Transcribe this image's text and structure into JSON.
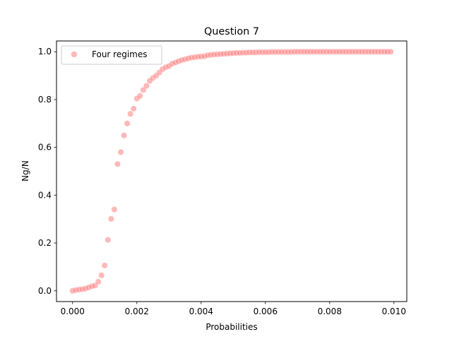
{
  "chart_data": {
    "type": "scatter",
    "title": "Question 7",
    "xlabel": "Probabilities",
    "ylabel": "Ng/N",
    "xlim": [
      -0.0005,
      0.0104
    ],
    "ylim": [
      -0.045,
      1.045
    ],
    "xticks": [
      0.0,
      0.002,
      0.004,
      0.006,
      0.008,
      0.01
    ],
    "xtick_labels": [
      "0.000",
      "0.002",
      "0.004",
      "0.006",
      "0.008",
      "0.010"
    ],
    "yticks": [
      0.0,
      0.2,
      0.4,
      0.6,
      0.8,
      1.0
    ],
    "ytick_labels": [
      "0.0",
      "0.2",
      "0.4",
      "0.6",
      "0.8",
      "1.0"
    ],
    "grid": false,
    "legend": {
      "position": "top-left",
      "entries": [
        "Four regimes"
      ]
    },
    "series": [
      {
        "name": "Four regimes",
        "color": "#ff7f7f",
        "x": [
          0.0,
          0.0001,
          0.0002,
          0.0003,
          0.0004,
          0.0005,
          0.0006,
          0.0007,
          0.0008,
          0.0009,
          0.001,
          0.0011,
          0.0012,
          0.0013,
          0.0014,
          0.0015,
          0.0016,
          0.0017,
          0.0018,
          0.0019,
          0.002,
          0.0021,
          0.0022,
          0.0023,
          0.0024,
          0.0025,
          0.0026,
          0.0027,
          0.0028,
          0.0029,
          0.003,
          0.0031,
          0.0032,
          0.0033,
          0.0034,
          0.0035,
          0.0036,
          0.0037,
          0.0038,
          0.0039,
          0.004,
          0.0041,
          0.0042,
          0.0043,
          0.0044,
          0.0045,
          0.0046,
          0.0047,
          0.0048,
          0.0049,
          0.005,
          0.0051,
          0.0052,
          0.0053,
          0.0054,
          0.0055,
          0.0056,
          0.0057,
          0.0058,
          0.0059,
          0.006,
          0.0061,
          0.0062,
          0.0063,
          0.0064,
          0.0065,
          0.0066,
          0.0067,
          0.0068,
          0.0069,
          0.007,
          0.0071,
          0.0072,
          0.0073,
          0.0074,
          0.0075,
          0.0076,
          0.0077,
          0.0078,
          0.0079,
          0.008,
          0.0081,
          0.0082,
          0.0083,
          0.0084,
          0.0085,
          0.0086,
          0.0087,
          0.0088,
          0.0089,
          0.009,
          0.0091,
          0.0092,
          0.0093,
          0.0094,
          0.0095,
          0.0096,
          0.0097,
          0.0098,
          0.0099
        ],
        "y": [
          0.0,
          0.003,
          0.005,
          0.007,
          0.009,
          0.014,
          0.019,
          0.022,
          0.038,
          0.065,
          0.106,
          0.213,
          0.301,
          0.34,
          0.53,
          0.58,
          0.65,
          0.7,
          0.74,
          0.762,
          0.804,
          0.815,
          0.84,
          0.857,
          0.878,
          0.89,
          0.9,
          0.913,
          0.927,
          0.935,
          0.94,
          0.95,
          0.955,
          0.96,
          0.965,
          0.968,
          0.972,
          0.975,
          0.977,
          0.979,
          0.98,
          0.981,
          0.985,
          0.987,
          0.988,
          0.989,
          0.99,
          0.991,
          0.992,
          0.993,
          0.994,
          0.995,
          0.995,
          0.996,
          0.996,
          0.997,
          0.997,
          0.997,
          0.998,
          0.998,
          0.998,
          0.998,
          0.999,
          0.999,
          0.999,
          0.999,
          0.999,
          0.999,
          0.999,
          1.0,
          1.0,
          1.0,
          1.0,
          1.0,
          1.0,
          1.0,
          1.0,
          1.0,
          1.0,
          1.0,
          1.0,
          1.0,
          1.0,
          1.0,
          1.0,
          1.0,
          1.0,
          1.0,
          1.0,
          1.0,
          1.0,
          1.0,
          1.0,
          1.0,
          1.0,
          1.0,
          1.0,
          1.0,
          1.0,
          1.0
        ]
      }
    ]
  }
}
